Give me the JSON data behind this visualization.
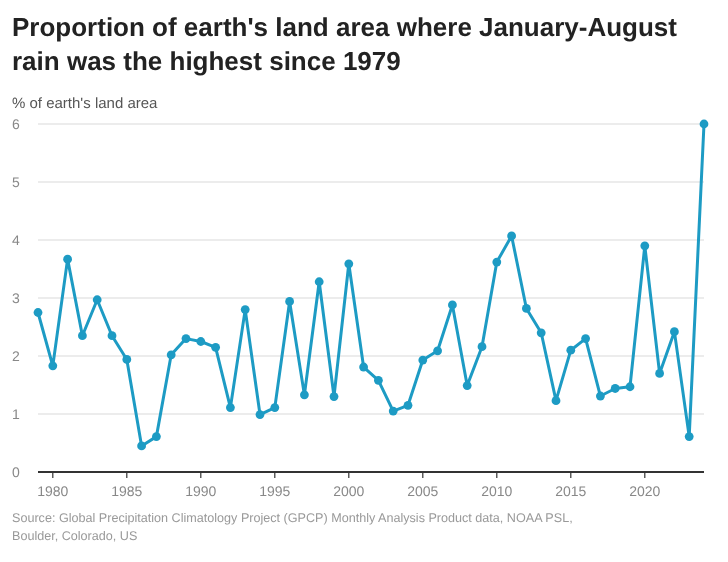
{
  "chart_data": {
    "type": "line",
    "title": "Proportion of earth's land area where January-August rain was the highest since 1979",
    "subtitle": "% of earth's land area",
    "x": [
      1979,
      1980,
      1981,
      1982,
      1983,
      1984,
      1985,
      1986,
      1987,
      1988,
      1989,
      1990,
      1991,
      1992,
      1993,
      1994,
      1995,
      1996,
      1997,
      1998,
      1999,
      2000,
      2001,
      2002,
      2003,
      2004,
      2005,
      2006,
      2007,
      2008,
      2009,
      2010,
      2011,
      2012,
      2013,
      2014,
      2015,
      2016,
      2017,
      2018,
      2019,
      2020,
      2021,
      2022,
      2023,
      2024
    ],
    "series": [
      {
        "color": "#1d9bc4",
        "values": [
          2.75,
          1.83,
          3.67,
          2.35,
          2.97,
          2.35,
          1.94,
          0.45,
          0.61,
          2.02,
          2.3,
          2.25,
          2.15,
          1.11,
          2.8,
          0.99,
          1.11,
          2.94,
          1.33,
          3.28,
          1.3,
          3.59,
          1.81,
          1.58,
          1.05,
          1.15,
          1.93,
          2.09,
          2.88,
          1.49,
          2.16,
          3.62,
          4.07,
          2.82,
          2.4,
          1.23,
          2.1,
          2.3,
          1.31,
          1.44,
          1.47,
          3.9,
          1.7,
          2.42,
          0.61,
          6
        ]
      }
    ],
    "xlim": [
      1979,
      2024
    ],
    "xticks": [
      1980,
      1985,
      1990,
      1995,
      2000,
      2005,
      2010,
      2015,
      2020
    ],
    "ylim": [
      0,
      6
    ],
    "yticks": [
      0,
      1,
      2,
      3,
      4,
      5,
      6
    ],
    "grid": "y",
    "marker": "circle",
    "line_style": "solid",
    "annotations": [
      "Source: Global Precipitation Climatology Project (GPCP) Monthly Analysis Product data, NOAA PSL, Boulder, Colorado, US"
    ]
  }
}
